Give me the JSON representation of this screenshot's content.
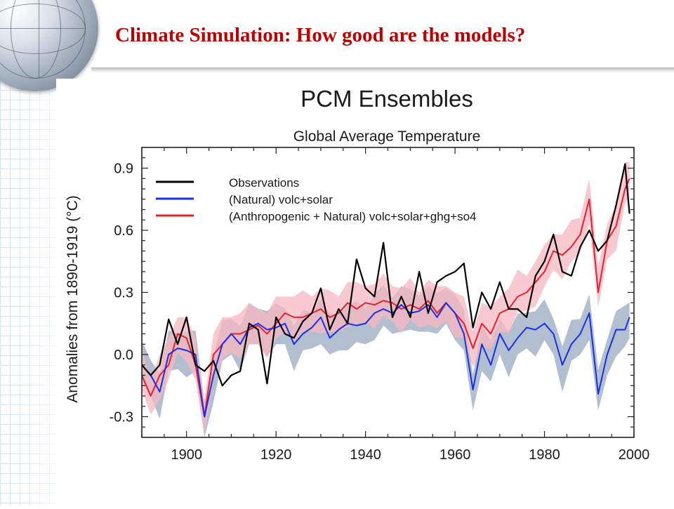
{
  "slide": {
    "title": "Climate Simulation: How good are the models?"
  },
  "chart_data": {
    "type": "line",
    "title": "PCM Ensembles",
    "subtitle": "Global Average Temperature",
    "ylabel": "Anomalies from 1890-1919 (°C)",
    "xlim": [
      1890,
      2000
    ],
    "ylim": [
      -0.4,
      1.0
    ],
    "x_ticks": [
      1900,
      1920,
      1940,
      1960,
      1980,
      2000
    ],
    "y_ticks": [
      -0.3,
      0.0,
      0.3,
      0.6,
      0.9
    ],
    "y_tick_labels": [
      "-0.3",
      "0.0",
      "0.3",
      "0.6",
      "0.9"
    ],
    "legend_position": "top-left",
    "legend": [
      "Observations",
      "(Natural) volc+solar",
      "(Anthropogenic + Natural) volc+solar+ghg+so4"
    ],
    "colors": {
      "observations": "#000000",
      "natural": "#1a2ee6",
      "anthro": "#e8202a",
      "natural_band": "#a4b4c8",
      "anthro_band": "#f7b7c2"
    },
    "x": [
      1890,
      1892,
      1894,
      1896,
      1898,
      1900,
      1902,
      1904,
      1906,
      1908,
      1910,
      1912,
      1914,
      1916,
      1918,
      1920,
      1922,
      1924,
      1926,
      1928,
      1930,
      1932,
      1934,
      1936,
      1938,
      1940,
      1942,
      1944,
      1946,
      1948,
      1950,
      1952,
      1954,
      1956,
      1958,
      1960,
      1962,
      1964,
      1966,
      1968,
      1970,
      1972,
      1974,
      1976,
      1978,
      1980,
      1982,
      1984,
      1986,
      1988,
      1990,
      1992,
      1994,
      1996,
      1998,
      1999
    ],
    "series": [
      {
        "name": "Observations",
        "values": [
          -0.05,
          -0.1,
          -0.05,
          0.17,
          0.05,
          0.18,
          -0.05,
          -0.08,
          -0.03,
          -0.15,
          -0.1,
          -0.08,
          0.15,
          0.12,
          -0.14,
          0.18,
          0.1,
          0.08,
          0.16,
          0.2,
          0.32,
          0.12,
          0.22,
          0.15,
          0.46,
          0.32,
          0.28,
          0.54,
          0.18,
          0.28,
          0.18,
          0.4,
          0.2,
          0.35,
          0.38,
          0.4,
          0.44,
          0.13,
          0.3,
          0.22,
          0.35,
          0.22,
          0.22,
          0.18,
          0.38,
          0.45,
          0.58,
          0.4,
          0.38,
          0.52,
          0.6,
          0.5,
          0.55,
          0.72,
          0.92,
          0.68
        ]
      },
      {
        "name": "(Natural) volc+solar",
        "values": [
          -0.05,
          -0.1,
          -0.18,
          0.0,
          0.03,
          0.02,
          0.0,
          -0.3,
          -0.1,
          0.05,
          0.1,
          0.05,
          0.13,
          0.15,
          0.12,
          0.13,
          0.15,
          0.05,
          0.1,
          0.13,
          0.18,
          0.08,
          0.12,
          0.15,
          0.14,
          0.15,
          0.2,
          0.22,
          0.2,
          0.24,
          0.2,
          0.21,
          0.24,
          0.18,
          0.25,
          0.2,
          0.1,
          -0.17,
          0.05,
          -0.05,
          0.1,
          0.02,
          0.08,
          0.13,
          0.12,
          0.15,
          0.1,
          -0.05,
          0.05,
          0.1,
          0.2,
          -0.19,
          0.0,
          0.12,
          0.12,
          0.18
        ]
      },
      {
        "name": "(Anthropogenic + Natural) volc+solar+ghg+so4",
        "values": [
          -0.1,
          -0.2,
          -0.1,
          -0.05,
          0.1,
          0.08,
          -0.05,
          -0.3,
          0.0,
          0.05,
          0.1,
          0.1,
          0.12,
          0.14,
          0.1,
          0.15,
          0.2,
          0.18,
          0.18,
          0.2,
          0.22,
          0.18,
          0.2,
          0.25,
          0.22,
          0.25,
          0.24,
          0.26,
          0.25,
          0.22,
          0.24,
          0.22,
          0.26,
          0.2,
          0.25,
          0.2,
          0.15,
          0.03,
          0.15,
          0.1,
          0.2,
          0.22,
          0.28,
          0.3,
          0.35,
          0.4,
          0.5,
          0.48,
          0.52,
          0.58,
          0.75,
          0.3,
          0.55,
          0.62,
          0.8,
          0.85
        ]
      }
    ]
  }
}
